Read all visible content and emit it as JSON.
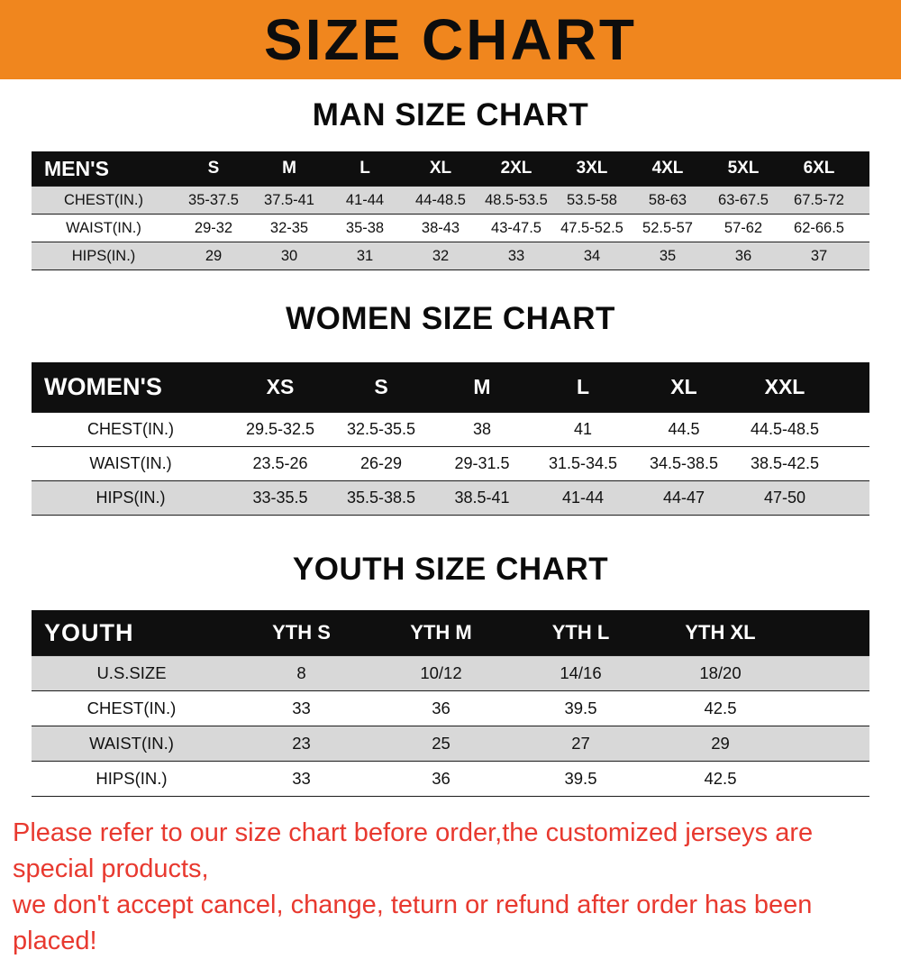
{
  "banner": {
    "title": "SIZE CHART"
  },
  "colors": {
    "banner_bg": "#f0861e",
    "table_header_bg": "#0f0f0f",
    "row_gray": "#d8d8d8",
    "footer_red": "#e8392f"
  },
  "men": {
    "heading": "MAN SIZE CHART",
    "header_label": "MEN'S",
    "columns": [
      "S",
      "M",
      "L",
      "XL",
      "2XL",
      "3XL",
      "4XL",
      "5XL",
      "6XL"
    ],
    "rows": [
      {
        "label": "CHEST(IN.)",
        "values": [
          "35-37.5",
          "37.5-41",
          "41-44",
          "44-48.5",
          "48.5-53.5",
          "53.5-58",
          "58-63",
          "63-67.5",
          "67.5-72"
        ]
      },
      {
        "label": "WAIST(IN.)",
        "values": [
          "29-32",
          "32-35",
          "35-38",
          "38-43",
          "43-47.5",
          "47.5-52.5",
          "52.5-57",
          "57-62",
          "62-66.5"
        ]
      },
      {
        "label": "HIPS(IN.)",
        "values": [
          "29",
          "30",
          "31",
          "32",
          "33",
          "34",
          "35",
          "36",
          "37"
        ]
      }
    ]
  },
  "women": {
    "heading": "WOMEN SIZE CHART",
    "header_label": "WOMEN'S",
    "columns": [
      "XS",
      "S",
      "M",
      "L",
      "XL",
      "XXL"
    ],
    "rows": [
      {
        "label": "CHEST(IN.)",
        "values": [
          "29.5-32.5",
          "32.5-35.5",
          "38",
          "41",
          "44.5",
          "44.5-48.5"
        ]
      },
      {
        "label": "WAIST(IN.)",
        "values": [
          "23.5-26",
          "26-29",
          "29-31.5",
          "31.5-34.5",
          "34.5-38.5",
          "38.5-42.5"
        ]
      },
      {
        "label": "HIPS(IN.)",
        "values": [
          "33-35.5",
          "35.5-38.5",
          "38.5-41",
          "41-44",
          "44-47",
          "47-50"
        ]
      }
    ]
  },
  "youth": {
    "heading": "YOUTH SIZE CHART",
    "header_label": "YOUTH",
    "columns": [
      "YTH S",
      "YTH M",
      "YTH L",
      "YTH XL"
    ],
    "rows": [
      {
        "label": "U.S.SIZE",
        "values": [
          "8",
          "10/12",
          "14/16",
          "18/20"
        ]
      },
      {
        "label": "CHEST(IN.)",
        "values": [
          "33",
          "36",
          "39.5",
          "42.5"
        ]
      },
      {
        "label": "WAIST(IN.)",
        "values": [
          "23",
          "25",
          "27",
          "29"
        ]
      },
      {
        "label": "HIPS(IN.)",
        "values": [
          "33",
          "36",
          "39.5",
          "42.5"
        ]
      }
    ]
  },
  "footer": {
    "line1": "Please refer to our size chart before order,the customized jerseys are special products,",
    "line2": "we don't accept cancel, change, teturn or refund after order has been placed!"
  }
}
